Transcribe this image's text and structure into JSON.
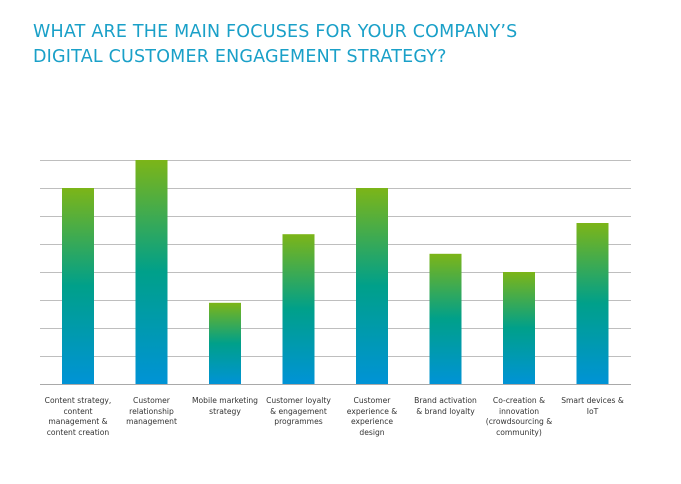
{
  "title_lines": [
    "WHAT ARE THE MAIN FOCUSES FOR YOUR COMPANY’S",
    "DIGITAL CUSTOMER ENGAGEMENT STRATEGY?"
  ],
  "colors": {
    "title": "#1aa0c8",
    "bar_top": "#7cb518",
    "bar_mid": "#00a08a",
    "bar_bottom": "#0093d6",
    "grid": "#a9a9a9"
  },
  "chart_data": {
    "type": "bar",
    "title": "WHAT ARE THE MAIN FOCUSES FOR YOUR COMPANY’S DIGITAL CUSTOMER ENGAGEMENT STRATEGY?",
    "categories": [
      "Content strategy, content management & content creation",
      "Customer relationship management",
      "Mobile marketing strategy",
      "Customer loyalty & engagement programmes",
      "Customer experience & experience design",
      "Brand activation & brand loyalty",
      "Co-creation & innovation (crowdsourcing & community)",
      "Smart devices & IoT"
    ],
    "category_labels": [
      "Content strategy,\ncontent\nmanagement &\ncontent creation",
      "Customer\nrelationship\nmanagement",
      "Mobile marketing\nstrategy",
      "Customer loyalty\n& engagement\nprogrammes",
      "Customer\nexperience &\nexperience\ndesign",
      "Brand activation\n& brand loyalty",
      "Co-creation &\ninnovation\n(crowdsourcing &\ncommunity)",
      "Smart devices &\nIoT"
    ],
    "values": [
      7,
      8,
      2.9,
      5.35,
      7,
      4.65,
      4,
      5.75
    ],
    "ylim": [
      0,
      8
    ],
    "grid": true,
    "xlabel": "",
    "ylabel": ""
  }
}
